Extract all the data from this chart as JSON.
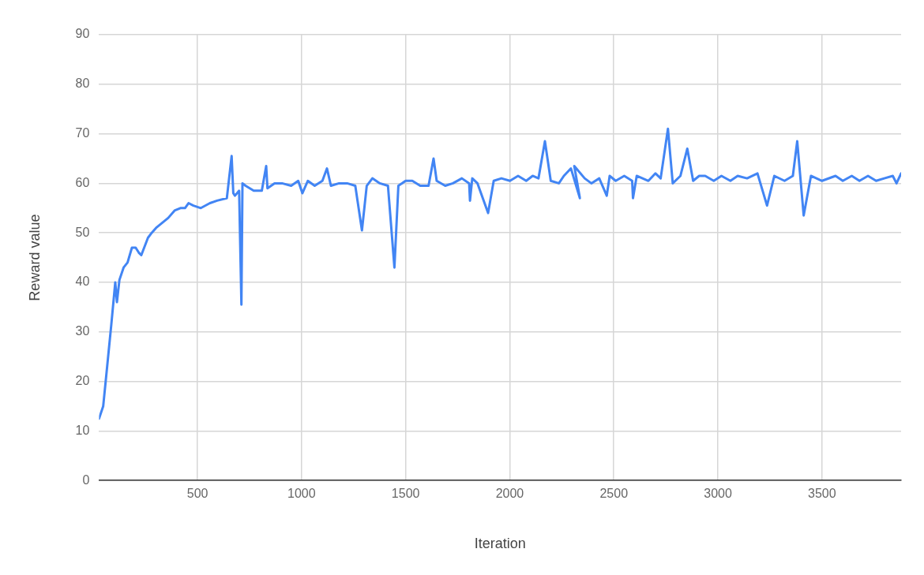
{
  "chart_data": {
    "type": "line",
    "xlabel": "Iteration",
    "ylabel": "Reward value",
    "xlim": [
      27,
      3880
    ],
    "xticks": [
      500,
      1000,
      1500,
      2000,
      2500,
      3000,
      3500
    ],
    "ylim": [
      0,
      90
    ],
    "yticks": [
      0,
      10,
      20,
      30,
      40,
      50,
      60,
      70,
      80,
      90
    ],
    "grid": true,
    "legend": false,
    "marker": "none",
    "line_style": "solid",
    "series": [
      {
        "color": "#4285f4",
        "x": [
          27,
          47,
          66,
          86,
          105,
          113,
          125,
          145,
          164,
          185,
          203,
          218,
          230,
          262,
          280,
          301,
          330,
          359,
          390,
          418,
          440,
          457,
          480,
          516,
          560,
          594,
          641,
          664,
          672,
          680,
          700,
          711,
          716,
          731,
          770,
          809,
          830,
          836,
          870,
          906,
          950,
          984,
          1004,
          1030,
          1063,
          1100,
          1122,
          1141,
          1180,
          1219,
          1258,
          1290,
          1313,
          1340,
          1376,
          1415,
          1446,
          1465,
          1500,
          1532,
          1570,
          1610,
          1634,
          1649,
          1690,
          1727,
          1770,
          1805,
          1809,
          1820,
          1845,
          1896,
          1923,
          1960,
          2001,
          2040,
          2079,
          2110,
          2138,
          2169,
          2197,
          2236,
          2260,
          2294,
          2337,
          2310,
          2360,
          2392,
          2430,
          2466,
          2480,
          2509,
          2550,
          2588,
          2592,
          2610,
          2666,
          2700,
          2725,
          2760,
          2783,
          2820,
          2853,
          2881,
          2910,
          2939,
          2980,
          3017,
          3060,
          3095,
          3140,
          3190,
          3236,
          3271,
          3320,
          3360,
          3381,
          3412,
          3447,
          3500,
          3565,
          3600,
          3643,
          3680,
          3721,
          3760,
          3799,
          3840,
          3858,
          3880
        ],
        "values": [
          12.5,
          15,
          23,
          31.5,
          40,
          36,
          40.5,
          43,
          44,
          47,
          47,
          46,
          45.5,
          49,
          50,
          51,
          52,
          53,
          54.5,
          55,
          55,
          56,
          55.5,
          55,
          56,
          56.5,
          57,
          65.5,
          58,
          57.5,
          58.5,
          35.5,
          60,
          59.5,
          58.5,
          58.5,
          63.5,
          59,
          60,
          60,
          59.5,
          60.5,
          58,
          60.5,
          59.5,
          60.5,
          63,
          59.5,
          60,
          60,
          59.5,
          50.5,
          59.5,
          61,
          60,
          59.5,
          43,
          59.5,
          60.5,
          60.5,
          59.5,
          59.5,
          65,
          60.5,
          59.5,
          60,
          61,
          60,
          56.5,
          61,
          60,
          54,
          60.5,
          61,
          60.5,
          61.5,
          60.5,
          61.5,
          61,
          68.5,
          60.5,
          60,
          61.5,
          63,
          57,
          63.5,
          61,
          60,
          61,
          57.5,
          61.5,
          60.5,
          61.5,
          60.5,
          57,
          61.5,
          60.5,
          62,
          61,
          71,
          60,
          61.5,
          67,
          60.5,
          61.5,
          61.5,
          60.5,
          61.5,
          60.5,
          61.5,
          61,
          62,
          55.5,
          61.5,
          60.5,
          61.5,
          68.5,
          53.5,
          61.5,
          60.5,
          61.5,
          60.5,
          61.5,
          60.5,
          61.5,
          60.5,
          61,
          61.5,
          60,
          62
        ]
      }
    ]
  }
}
